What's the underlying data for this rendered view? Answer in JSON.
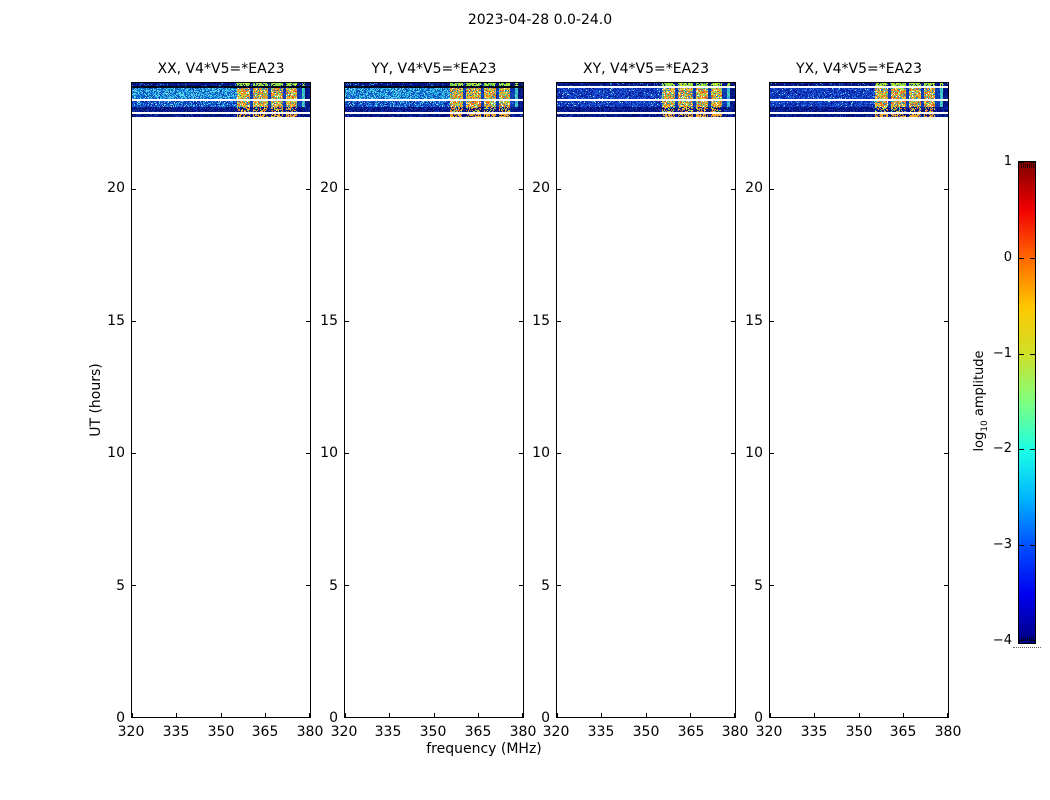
{
  "figure": {
    "background": "#ffffff"
  },
  "chart_data": {
    "type": "heatmap",
    "title": "2023-04-28 0.0-24.0",
    "xlabel": "frequency (MHz)",
    "ylabel": "UT (hours)",
    "x_range_mhz": [
      320,
      380
    ],
    "y_range_hours": [
      0,
      24
    ],
    "x_tick_labels": [
      "320",
      "335",
      "350",
      "365",
      "380"
    ],
    "x_tick_values": [
      320,
      335,
      350,
      365,
      380
    ],
    "y_tick_labels": [
      "0",
      "5",
      "10",
      "15",
      "20"
    ],
    "y_tick_values": [
      0,
      5,
      10,
      15,
      20
    ],
    "grid": false,
    "panels": [
      {
        "title": "XX, V4*V5=*EA23",
        "pol": "XX",
        "band_style": "bright"
      },
      {
        "title": "YY, V4*V5=*EA23",
        "pol": "YY",
        "band_style": "bright"
      },
      {
        "title": "XY, V4*V5=*EA23",
        "pol": "XY",
        "band_style": "dark"
      },
      {
        "title": "YX, V4*V5=*EA23",
        "pol": "YX",
        "band_style": "dark"
      }
    ],
    "data_band": {
      "ut_start_hours": 22.7,
      "ut_end_hours": 24.0,
      "description": "Data present only near UT 23-24 in all four panels: speckled blue/cyan broadband signal 320-355 MHz (brighter cyan in XX/YY, darker blue in XY/YX), bright orange/yellow RFI blocks ~356-377 MHz separated by dark vertical stripes, thin white horizontal gaps between scan rows, thin dark navy top/bottom rows with yellow-green segments over the RFI range",
      "rfi_region_mhz": [
        356,
        378
      ],
      "rfi_patches_frac": [
        [
          0.59,
          0.665
        ],
        [
          0.678,
          0.765
        ],
        [
          0.782,
          0.85
        ],
        [
          0.868,
          0.93
        ]
      ],
      "rfi_tail_frac": [
        0.955,
        0.972
      ]
    },
    "colorbar": {
      "label_prefix": "log",
      "label_sub": "10",
      "label_suffix": " amplitude",
      "tick_labels": [
        "1",
        "0",
        "−1",
        "−2",
        "−3",
        "−4"
      ],
      "tick_values": [
        1,
        0,
        -1,
        -2,
        -3,
        -4
      ],
      "vmin": -4,
      "vmax": 1,
      "colormap": "jet",
      "gradient_stops": [
        "#800000",
        "#f20000",
        "#ff6800",
        "#ffc600",
        "#cee029",
        "#7dff80",
        "#1affe6",
        "#00b4ff",
        "#004dff",
        "#0000f0",
        "#000080"
      ]
    },
    "band_colors": {
      "bright_main": [
        "#0a50c0",
        "#1878d8",
        "#28a0e0",
        "#48c8e8",
        "#18b0e0",
        "#0848b8",
        "#60d8f0",
        "#1060c8"
      ],
      "dark_main": [
        "#0828a8",
        "#1038c0",
        "#1850d0",
        "#2870e0",
        "#081890",
        "#1040c8"
      ],
      "rfi": [
        "#f09020",
        "#f0a830",
        "#e8c838",
        "#d8e040",
        "#a0e050",
        "#f07010",
        "#50d090",
        "#e86010"
      ],
      "top_dark": [
        "#000878",
        "#001090",
        "#0820a8",
        "#102880",
        "#001060"
      ],
      "top_bright": [
        "#b0e030",
        "#c8e838",
        "#90dc40",
        "#58cc58"
      ],
      "stripe": "#0b3cb0"
    }
  }
}
